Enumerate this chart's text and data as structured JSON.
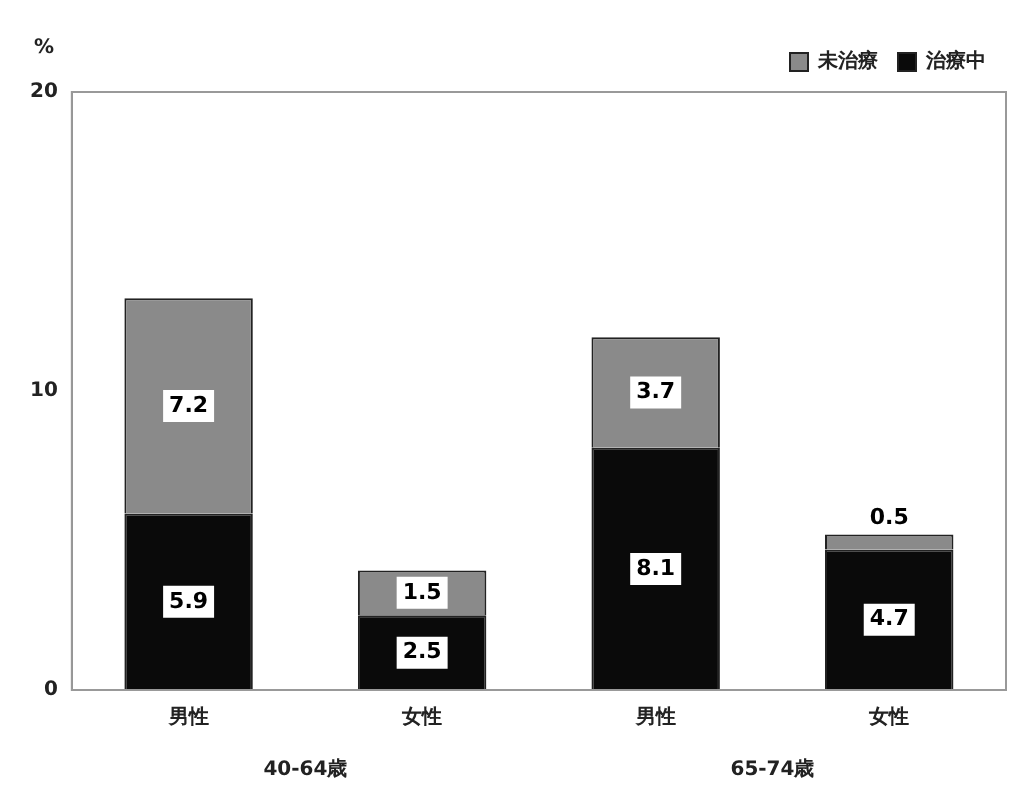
{
  "chart_data": {
    "type": "bar",
    "ylabel": "%",
    "categories": [
      "男性",
      "女性",
      "男性",
      "女性"
    ],
    "series": [
      {
        "name": "治療中",
        "color": "#0a0a0a",
        "values": [
          5.9,
          2.5,
          8.1,
          4.7
        ]
      },
      {
        "name": "未治療",
        "color": "#8a8a8a",
        "values": [
          7.2,
          1.5,
          3.7,
          0.5
        ]
      }
    ],
    "stacked": true,
    "ylim": [
      0,
      20
    ],
    "yticks": [
      0,
      10,
      20
    ],
    "grid": false,
    "legend": "top right",
    "data_labels": true,
    "annotations": [
      "40-64歳",
      "65-74歳"
    ]
  }
}
